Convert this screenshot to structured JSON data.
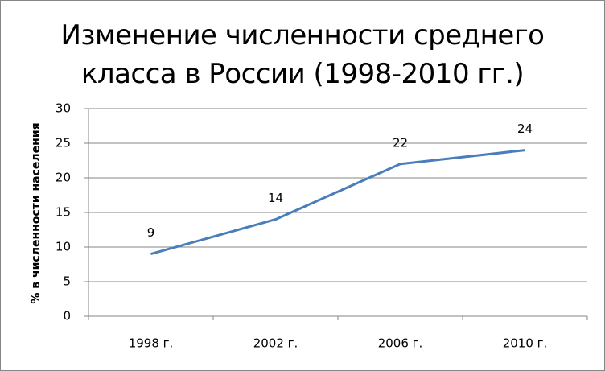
{
  "chart_data": {
    "type": "line",
    "title": "Изменение численности  среднего класса в России (1998-2010 гг.)",
    "y_label": "% в численности населения",
    "categories": [
      "1998 г.",
      "2002 г.",
      "2006 г.",
      "2010 г."
    ],
    "values": [
      9,
      14,
      22,
      24
    ],
    "color": "#4a7ebb",
    "ylim": [
      0,
      30
    ],
    "yticks": [
      0,
      5,
      10,
      15,
      20,
      25,
      30
    ],
    "grid": true,
    "data_labels": true
  }
}
